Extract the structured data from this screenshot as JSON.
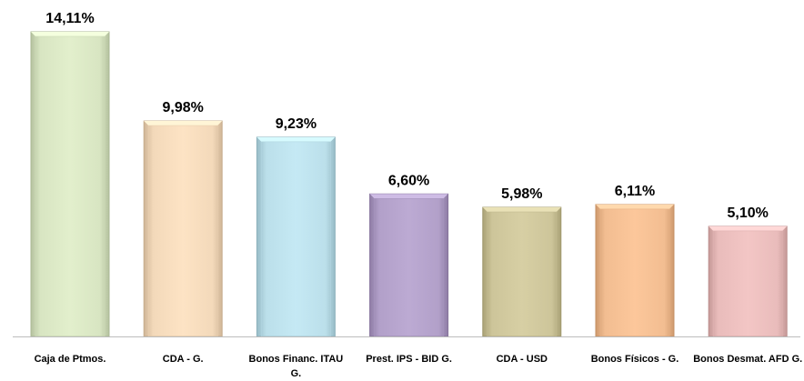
{
  "chart_data": {
    "type": "bar",
    "title": "",
    "xlabel": "",
    "ylabel": "",
    "ylim": [
      0,
      14.11
    ],
    "grid": false,
    "legend": "none",
    "value_labels": [
      "14,11%",
      "9,98%",
      "9,23%",
      "6,60%",
      "5,98%",
      "6,11%",
      "5,10%"
    ],
    "categories": [
      "Caja de Ptmos.",
      "CDA - G.",
      "Bonos Financ. ITAU G.",
      "Prest. IPS - BID G.",
      "CDA - USD",
      "Bonos Físicos - G.",
      "Bonos Desmat. AFD G."
    ],
    "values": [
      14.11,
      9.98,
      9.23,
      6.6,
      5.98,
      6.11,
      5.1
    ],
    "colors": [
      "#e2efcc",
      "#fde3c4",
      "#c5e9f4",
      "#bcaad3",
      "#d7cfa4",
      "#fcc79b",
      "#f3c6c5"
    ],
    "axis_color": "#bdbdbd"
  }
}
